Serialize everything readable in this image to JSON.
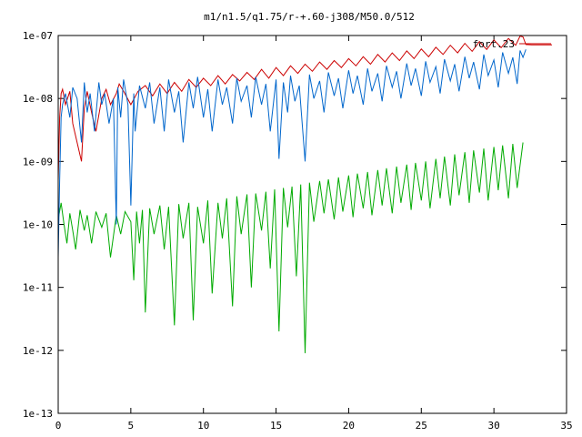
{
  "chart_data": {
    "type": "line",
    "title": "m1/n1.5/q1.75/r-+.60-j308/M50.0/512",
    "xlabel": "",
    "ylabel": "",
    "xlim": [
      0,
      35
    ],
    "ylim": [
      1e-13,
      1e-07
    ],
    "yscale": "log",
    "grid": false,
    "legend_position": "top-right",
    "x_ticks": [
      0,
      5,
      10,
      15,
      20,
      25,
      30,
      35
    ],
    "x_tick_labels": [
      "0",
      "5",
      "10",
      "15",
      "20",
      "25",
      "30",
      "35"
    ],
    "y_ticks": [
      1e-13,
      1e-12,
      1e-11,
      1e-10,
      1e-09,
      1e-08,
      1e-07
    ],
    "y_tick_labels": [
      "1e-13",
      "1e-12",
      "1e-11",
      "1e-10",
      "1e-09",
      "1e-08",
      "1e-07"
    ],
    "series": [
      {
        "name": "fort.23",
        "color": "#cc0000",
        "x": [
          0.0,
          0.1,
          0.2,
          0.3,
          0.5,
          0.8,
          1.0,
          1.3,
          1.6,
          1.8,
          2.0,
          2.3,
          2.6,
          3.0,
          3.3,
          3.6,
          4.0,
          4.2,
          4.5,
          5.0,
          5.5,
          6.0,
          6.5,
          7.0,
          7.5,
          8.0,
          8.5,
          9.0,
          9.5,
          10.0,
          10.5,
          11.0,
          11.5,
          12.0,
          12.5,
          13.0,
          13.5,
          14.0,
          14.5,
          15.0,
          15.5,
          16.0,
          16.5,
          17.0,
          17.5,
          18.0,
          18.5,
          19.0,
          19.5,
          20.0,
          20.5,
          21.0,
          21.5,
          22.0,
          22.5,
          23.0,
          23.5,
          24.0,
          24.5,
          25.0,
          25.5,
          26.0,
          26.5,
          27.0,
          27.5,
          28.0,
          28.5,
          29.0,
          29.5,
          30.0,
          30.5,
          31.0,
          31.5,
          31.8,
          32.0,
          32.2,
          32.6,
          34.0
        ],
        "y": [
          5e-10,
          5e-09,
          1.2e-08,
          1.4e-08,
          8e-09,
          1.3e-08,
          4e-09,
          2e-09,
          1e-09,
          7e-09,
          1.3e-08,
          6e-09,
          3e-09,
          1e-08,
          1.4e-08,
          8e-09,
          1.2e-08,
          1.7e-08,
          1.3e-08,
          8e-09,
          1.3e-08,
          1.6e-08,
          1.1e-08,
          1.7e-08,
          1.2e-08,
          1.8e-08,
          1.3e-08,
          2e-08,
          1.5e-08,
          2.1e-08,
          1.6e-08,
          2.3e-08,
          1.7e-08,
          2.4e-08,
          1.9e-08,
          2.6e-08,
          2e-08,
          2.9e-08,
          2.1e-08,
          3.1e-08,
          2.3e-08,
          3.3e-08,
          2.5e-08,
          3.5e-08,
          2.7e-08,
          3.8e-08,
          2.9e-08,
          4e-08,
          3.1e-08,
          4.3e-08,
          3.3e-08,
          4.6e-08,
          3.5e-08,
          5e-08,
          3.8e-08,
          5.3e-08,
          4e-08,
          5.7e-08,
          4.3e-08,
          6.1e-08,
          4.6e-08,
          6.5e-08,
          5e-08,
          7e-08,
          5.3e-08,
          7.5e-08,
          5.6e-08,
          8e-08,
          6e-08,
          8.5e-08,
          6.4e-08,
          9e-08,
          7e-08,
          9.8e-08,
          9.5e-08,
          7.2e-08,
          7.1e-08,
          7.1e-08
        ]
      },
      {
        "name": "",
        "color": "#0066cc",
        "x": [
          0.0,
          0.1,
          0.2,
          0.3,
          0.5,
          0.8,
          1.0,
          1.3,
          1.6,
          1.8,
          2.0,
          2.2,
          2.5,
          2.8,
          3.0,
          3.2,
          3.5,
          3.8,
          4.0,
          4.1,
          4.3,
          4.5,
          4.8,
          5.0,
          5.2,
          5.3,
          5.6,
          6.0,
          6.3,
          6.6,
          7.0,
          7.3,
          7.6,
          8.0,
          8.3,
          8.6,
          9.0,
          9.3,
          9.6,
          10.0,
          10.3,
          10.6,
          11.0,
          11.3,
          11.6,
          12.0,
          12.3,
          12.6,
          13.0,
          13.3,
          13.6,
          14.0,
          14.3,
          14.6,
          15.0,
          15.2,
          15.5,
          15.8,
          16.0,
          16.3,
          16.6,
          17.0,
          17.3,
          17.6,
          18.0,
          18.3,
          18.6,
          19.0,
          19.3,
          19.6,
          20.0,
          20.3,
          20.6,
          21.0,
          21.3,
          21.6,
          22.0,
          22.3,
          22.6,
          23.0,
          23.3,
          23.6,
          24.0,
          24.3,
          24.6,
          25.0,
          25.3,
          25.6,
          26.0,
          26.3,
          26.6,
          27.0,
          27.3,
          27.6,
          28.0,
          28.3,
          28.6,
          29.0,
          29.3,
          29.6,
          30.0,
          30.3,
          30.6,
          31.0,
          31.3,
          31.6,
          31.8,
          32.0,
          32.2
        ],
        "y": [
          3e-11,
          5e-10,
          5e-09,
          8e-09,
          1.2e-08,
          5e-09,
          1.5e-08,
          1e-08,
          2e-09,
          1.8e-08,
          6e-09,
          1.2e-08,
          3e-09,
          1.8e-08,
          8e-09,
          1.2e-08,
          4e-09,
          1e-08,
          1e-10,
          1.5e-08,
          5e-09,
          2e-08,
          8e-09,
          2e-10,
          1.2e-08,
          3e-09,
          1.6e-08,
          7e-09,
          1.8e-08,
          4e-09,
          1.5e-08,
          3e-09,
          2e-08,
          6e-09,
          1.3e-08,
          2e-09,
          1.8e-08,
          7e-09,
          2.2e-08,
          5e-09,
          1.4e-08,
          3e-09,
          2e-08,
          8e-09,
          1.5e-08,
          4e-09,
          2.1e-08,
          9e-09,
          1.6e-08,
          5e-09,
          2.2e-08,
          8e-09,
          1.7e-08,
          3e-09,
          2e-08,
          1.1e-09,
          1.8e-08,
          6e-09,
          2.3e-08,
          9e-09,
          1.6e-08,
          1e-09,
          2.4e-08,
          1e-08,
          1.9e-08,
          6e-09,
          2.6e-08,
          1.1e-08,
          2.1e-08,
          7e-09,
          2.8e-08,
          1.2e-08,
          2.3e-08,
          8e-09,
          3e-08,
          1.3e-08,
          2.5e-08,
          9e-09,
          3.3e-08,
          1.5e-08,
          2.7e-08,
          1e-08,
          3.6e-08,
          1.6e-08,
          3e-08,
          1.1e-08,
          3.9e-08,
          1.8e-08,
          3.2e-08,
          1.2e-08,
          4.2e-08,
          1.9e-08,
          3.5e-08,
          1.3e-08,
          4.6e-08,
          2.1e-08,
          3.8e-08,
          1.4e-08,
          5e-08,
          2.3e-08,
          4.1e-08,
          1.5e-08,
          5.4e-08,
          2.5e-08,
          4.5e-08,
          1.7e-08,
          5.8e-08,
          4.5e-08,
          6e-08
        ]
      },
      {
        "name": "",
        "color": "#00aa00",
        "x": [
          0.0,
          0.2,
          0.4,
          0.6,
          0.8,
          1.0,
          1.2,
          1.5,
          1.8,
          2.0,
          2.3,
          2.6,
          3.0,
          3.3,
          3.6,
          4.0,
          4.3,
          4.6,
          5.0,
          5.2,
          5.4,
          5.6,
          5.8,
          6.0,
          6.3,
          6.6,
          7.0,
          7.3,
          7.6,
          8.0,
          8.3,
          8.6,
          9.0,
          9.3,
          9.6,
          10.0,
          10.3,
          10.6,
          11.0,
          11.3,
          11.6,
          12.0,
          12.3,
          12.6,
          13.0,
          13.3,
          13.6,
          14.0,
          14.3,
          14.6,
          14.9,
          15.2,
          15.5,
          15.8,
          16.1,
          16.4,
          16.7,
          17.0,
          17.3,
          17.6,
          18.0,
          18.3,
          18.6,
          19.0,
          19.3,
          19.6,
          20.0,
          20.3,
          20.6,
          21.0,
          21.3,
          21.6,
          22.0,
          22.3,
          22.6,
          23.0,
          23.3,
          23.6,
          24.0,
          24.3,
          24.6,
          25.0,
          25.3,
          25.6,
          26.0,
          26.3,
          26.6,
          27.0,
          27.3,
          27.6,
          28.0,
          28.3,
          28.6,
          29.0,
          29.3,
          29.6,
          30.0,
          30.3,
          30.6,
          31.0,
          31.3,
          31.6,
          32.0
        ],
        "y": [
          1.2e-10,
          2.2e-10,
          1e-10,
          5e-11,
          1.5e-10,
          8e-11,
          4e-11,
          1.7e-10,
          8e-11,
          1.4e-10,
          5e-11,
          1.6e-10,
          9e-11,
          1.5e-10,
          3e-11,
          1.4e-10,
          7e-11,
          1.6e-10,
          1.1e-10,
          1.3e-11,
          1.6e-10,
          5e-11,
          1.7e-10,
          4e-12,
          1.8e-10,
          7e-11,
          2e-10,
          4e-11,
          1.9e-10,
          2.5e-12,
          2.1e-10,
          6e-11,
          2.2e-10,
          3e-12,
          1.9e-10,
          5e-11,
          2.4e-10,
          8e-12,
          2.2e-10,
          6e-11,
          2.6e-10,
          5e-12,
          2.8e-10,
          7e-11,
          3e-10,
          1e-11,
          3.1e-10,
          8e-11,
          3.3e-10,
          2e-11,
          3.6e-10,
          2e-12,
          3.8e-10,
          9e-11,
          4e-10,
          1.5e-11,
          4.3e-10,
          9e-13,
          4.6e-10,
          1.1e-10,
          4.9e-10,
          1.5e-10,
          5.2e-10,
          1.2e-10,
          5.6e-10,
          1.6e-10,
          6e-10,
          1.3e-10,
          6.4e-10,
          1.8e-10,
          6.8e-10,
          1.4e-10,
          7.3e-10,
          2e-10,
          7.8e-10,
          1.5e-10,
          8.3e-10,
          2.2e-10,
          8.9e-10,
          1.7e-10,
          9.5e-10,
          2.4e-10,
          1e-09,
          1.8e-10,
          1.1e-09,
          2.6e-10,
          1.2e-09,
          2e-10,
          1.3e-09,
          2.9e-10,
          1.4e-09,
          2.2e-10,
          1.5e-09,
          3.2e-10,
          1.6e-09,
          2.4e-10,
          1.7e-09,
          3.5e-10,
          1.8e-09,
          2.6e-10,
          1.9e-09,
          3.8e-10,
          2e-09
        ]
      }
    ]
  }
}
